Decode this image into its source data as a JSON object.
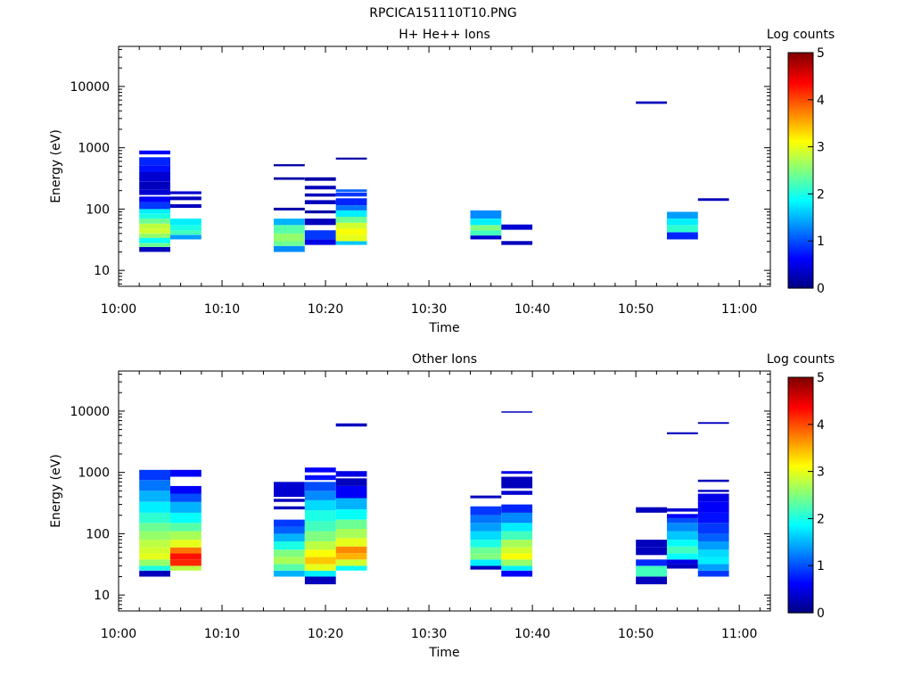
{
  "figure_title": "RPCICA151110T10.PNG",
  "chart_data": [
    {
      "type": "heatmap",
      "title": "H+ He++ Ions",
      "xlabel": "Time",
      "ylabel": "Energy (eV)",
      "x_ticks": [
        "10:00",
        "10:10",
        "10:20",
        "10:30",
        "10:40",
        "10:50",
        "11:00"
      ],
      "x_range": [
        "10:00",
        "11:03"
      ],
      "y_scale": "log",
      "y_ticks": [
        "10",
        "100",
        "1000",
        "10000"
      ],
      "ylim": [
        5.5,
        45000
      ],
      "colorbar": {
        "label": "Log counts",
        "ticks": [
          "0",
          "1",
          "2",
          "3",
          "4",
          "5"
        ],
        "range": [
          0,
          5
        ],
        "colormap": "jet"
      },
      "columns": [
        {
          "t_start": "10:02",
          "t_end": "10:05",
          "cells": [
            [
              20,
              24,
              0.3
            ],
            [
              24,
              28,
              2.4
            ],
            [
              28,
              34,
              1.9
            ],
            [
              34,
              40,
              2.6
            ],
            [
              40,
              48,
              2.9
            ],
            [
              48,
              58,
              2.8
            ],
            [
              58,
              70,
              2.4
            ],
            [
              70,
              85,
              2.0
            ],
            [
              85,
              100,
              1.8
            ],
            [
              100,
              130,
              0.9
            ],
            [
              130,
              160,
              0.6
            ],
            [
              170,
              210,
              0.4
            ],
            [
              210,
              280,
              0.3
            ],
            [
              280,
              400,
              0.4
            ],
            [
              400,
              520,
              0.7
            ],
            [
              520,
              700,
              0.8
            ],
            [
              780,
              900,
              0.6
            ]
          ]
        },
        {
          "t_start": "10:05",
          "t_end": "10:08",
          "cells": [
            [
              32,
              38,
              1.4
            ],
            [
              38,
              45,
              2.2
            ],
            [
              45,
              55,
              2.0
            ],
            [
              55,
              70,
              1.8
            ],
            [
              105,
              120,
              0.3
            ],
            [
              140,
              160,
              0.3
            ],
            [
              175,
              195,
              0.4
            ]
          ]
        },
        {
          "t_start": "10:15",
          "t_end": "10:18",
          "cells": [
            [
              20,
              25,
              1.3
            ],
            [
              25,
              30,
              2.4
            ],
            [
              30,
              40,
              2.6
            ],
            [
              40,
              55,
              2.3
            ],
            [
              55,
              70,
              1.5
            ],
            [
              95,
              105,
              0.2
            ],
            [
              300,
              330,
              0.2
            ],
            [
              500,
              540,
              0.2
            ]
          ]
        },
        {
          "t_start": "10:18",
          "t_end": "10:21",
          "cells": [
            [
              26,
              32,
              0.5
            ],
            [
              32,
              45,
              0.9
            ],
            [
              55,
              70,
              0.3
            ],
            [
              85,
              95,
              0.2
            ],
            [
              120,
              140,
              0.3
            ],
            [
              160,
              180,
              0.3
            ],
            [
              210,
              240,
              0.3
            ],
            [
              290,
              330,
              0.2
            ]
          ]
        },
        {
          "t_start": "10:21",
          "t_end": "10:24",
          "cells": [
            [
              26,
              30,
              1.6
            ],
            [
              30,
              38,
              3.0
            ],
            [
              38,
              48,
              3.1
            ],
            [
              48,
              60,
              2.9
            ],
            [
              60,
              75,
              2.4
            ],
            [
              75,
              95,
              1.8
            ],
            [
              95,
              115,
              1.2
            ],
            [
              115,
              150,
              0.8
            ],
            [
              160,
              185,
              0.9
            ],
            [
              190,
              210,
              1.1
            ],
            [
              640,
              690,
              0.2
            ]
          ]
        },
        {
          "t_start": "10:34",
          "t_end": "10:37",
          "cells": [
            [
              32,
              37,
              0.4
            ],
            [
              37,
              45,
              2.2
            ],
            [
              45,
              55,
              2.5
            ],
            [
              55,
              70,
              1.8
            ],
            [
              70,
              95,
              1.3
            ]
          ]
        },
        {
          "t_start": "10:37",
          "t_end": "10:40",
          "cells": [
            [
              26,
              30,
              0.3
            ],
            [
              46,
              56,
              0.4
            ]
          ]
        },
        {
          "t_start": "10:50",
          "t_end": "10:53",
          "cells": [
            [
              5200,
              5700,
              0.3
            ]
          ]
        },
        {
          "t_start": "10:53",
          "t_end": "10:56",
          "cells": [
            [
              32,
              42,
              0.8
            ],
            [
              42,
              55,
              2.1
            ],
            [
              55,
              70,
              1.8
            ],
            [
              70,
              90,
              1.4
            ]
          ]
        },
        {
          "t_start": "10:56",
          "t_end": "10:59",
          "cells": [
            [
              136,
              150,
              0.3
            ]
          ]
        }
      ]
    },
    {
      "type": "heatmap",
      "title": "Other Ions",
      "xlabel": "Time",
      "ylabel": "Energy (eV)",
      "x_ticks": [
        "10:00",
        "10:10",
        "10:20",
        "10:30",
        "10:40",
        "10:50",
        "11:00"
      ],
      "x_range": [
        "10:00",
        "11:03"
      ],
      "y_scale": "log",
      "y_ticks": [
        "10",
        "100",
        "1000",
        "10000"
      ],
      "ylim": [
        5.5,
        45000
      ],
      "colorbar": {
        "label": "Log counts",
        "ticks": [
          "0",
          "1",
          "2",
          "3",
          "4",
          "5"
        ],
        "range": [
          0,
          5
        ],
        "colormap": "jet"
      },
      "columns": [
        {
          "t_start": "10:02",
          "t_end": "10:05",
          "cells": [
            [
              20,
              25,
              0.3
            ],
            [
              25,
              30,
              2.0
            ],
            [
              30,
              38,
              2.6
            ],
            [
              38,
              48,
              3.0
            ],
            [
              48,
              60,
              2.9
            ],
            [
              60,
              80,
              2.8
            ],
            [
              80,
              110,
              2.6
            ],
            [
              110,
              150,
              2.4
            ],
            [
              150,
              220,
              2.1
            ],
            [
              220,
              330,
              1.8
            ],
            [
              330,
              500,
              1.5
            ],
            [
              500,
              750,
              1.2
            ],
            [
              750,
              1100,
              0.9
            ]
          ]
        },
        {
          "t_start": "10:05",
          "t_end": "10:08",
          "cells": [
            [
              25,
              30,
              2.8
            ],
            [
              30,
              38,
              4.2
            ],
            [
              38,
              48,
              4.3
            ],
            [
              48,
              60,
              3.8
            ],
            [
              60,
              80,
              3.0
            ],
            [
              80,
              110,
              2.7
            ],
            [
              110,
              150,
              2.3
            ],
            [
              150,
              220,
              1.9
            ],
            [
              220,
              330,
              1.5
            ],
            [
              330,
              450,
              1.0
            ],
            [
              450,
              600,
              0.6
            ],
            [
              850,
              1100,
              0.6
            ]
          ]
        },
        {
          "t_start": "10:15",
          "t_end": "10:18",
          "cells": [
            [
              20,
              25,
              1.5
            ],
            [
              25,
              32,
              2.3
            ],
            [
              32,
              42,
              2.7
            ],
            [
              42,
              55,
              2.5
            ],
            [
              55,
              75,
              2.0
            ],
            [
              75,
              100,
              1.5
            ],
            [
              100,
              130,
              1.1
            ],
            [
              130,
              170,
              0.9
            ],
            [
              250,
              280,
              0.3
            ],
            [
              330,
              370,
              0.3
            ],
            [
              400,
              700,
              0.4
            ]
          ]
        },
        {
          "t_start": "10:18",
          "t_end": "10:21",
          "cells": [
            [
              15,
              20,
              0.3
            ],
            [
              20,
              25,
              1.8
            ],
            [
              25,
              32,
              3.0
            ],
            [
              32,
              42,
              3.4
            ],
            [
              42,
              55,
              3.1
            ],
            [
              55,
              75,
              2.8
            ],
            [
              75,
              110,
              2.5
            ],
            [
              110,
              160,
              2.2
            ],
            [
              160,
              240,
              2.0
            ],
            [
              240,
              350,
              1.7
            ],
            [
              350,
              500,
              1.3
            ],
            [
              500,
              700,
              1.0
            ],
            [
              750,
              900,
              0.7
            ],
            [
              1000,
              1200,
              0.6
            ]
          ]
        },
        {
          "t_start": "10:21",
          "t_end": "10:24",
          "cells": [
            [
              25,
              30,
              1.9
            ],
            [
              30,
              38,
              2.9
            ],
            [
              38,
              48,
              3.5
            ],
            [
              48,
              62,
              3.7
            ],
            [
              62,
              85,
              3.0
            ],
            [
              85,
              120,
              2.7
            ],
            [
              120,
              170,
              2.4
            ],
            [
              170,
              250,
              1.9
            ],
            [
              250,
              380,
              1.5
            ],
            [
              380,
              600,
              0.6
            ],
            [
              600,
              800,
              0.3
            ],
            [
              850,
              1050,
              0.5
            ],
            [
              5600,
              6300,
              0.3
            ]
          ]
        },
        {
          "t_start": "10:34",
          "t_end": "10:37",
          "cells": [
            [
              26,
              30,
              0.3
            ],
            [
              30,
              38,
              1.8
            ],
            [
              38,
              48,
              2.5
            ],
            [
              48,
              60,
              2.4
            ],
            [
              60,
              80,
              2.0
            ],
            [
              80,
              110,
              1.7
            ],
            [
              110,
              150,
              1.4
            ],
            [
              150,
              200,
              1.2
            ],
            [
              200,
              280,
              0.9
            ],
            [
              380,
              420,
              0.3
            ]
          ]
        },
        {
          "t_start": "10:37",
          "t_end": "10:40",
          "cells": [
            [
              20,
              25,
              0.6
            ],
            [
              25,
              30,
              1.8
            ],
            [
              30,
              38,
              2.6
            ],
            [
              38,
              48,
              3.1
            ],
            [
              48,
              60,
              2.9
            ],
            [
              60,
              80,
              2.7
            ],
            [
              80,
              110,
              2.2
            ],
            [
              110,
              150,
              1.8
            ],
            [
              150,
              220,
              1.3
            ],
            [
              220,
              300,
              0.8
            ],
            [
              430,
              500,
              0.4
            ],
            [
              550,
              850,
              0.3
            ],
            [
              950,
              1050,
              0.5
            ],
            [
              9400,
              9900,
              0.3
            ]
          ]
        },
        {
          "t_start": "10:50",
          "t_end": "10:53",
          "cells": [
            [
              15,
              20,
              0.3
            ],
            [
              20,
              30,
              2.2
            ],
            [
              30,
              38,
              0.8
            ],
            [
              45,
              60,
              0.3
            ],
            [
              60,
              80,
              0.3
            ],
            [
              220,
              270,
              0.3
            ]
          ]
        },
        {
          "t_start": "10:53",
          "t_end": "10:56",
          "cells": [
            [
              27,
              32,
              0.3
            ],
            [
              32,
              38,
              0.5
            ],
            [
              38,
              48,
              1.9
            ],
            [
              48,
              62,
              2.2
            ],
            [
              62,
              80,
              1.9
            ],
            [
              80,
              110,
              1.6
            ],
            [
              110,
              150,
              1.3
            ],
            [
              150,
              180,
              1.0
            ],
            [
              180,
              210,
              0.6
            ],
            [
              230,
              260,
              0.4
            ],
            [
              4200,
              4500,
              0.3
            ]
          ]
        },
        {
          "t_start": "10:56",
          "t_end": "10:59",
          "cells": [
            [
              20,
              25,
              0.9
            ],
            [
              25,
              32,
              1.4
            ],
            [
              32,
              42,
              1.8
            ],
            [
              42,
              55,
              1.7
            ],
            [
              55,
              75,
              1.4
            ],
            [
              75,
              100,
              1.1
            ],
            [
              100,
              150,
              0.9
            ],
            [
              150,
              220,
              0.7
            ],
            [
              220,
              330,
              0.6
            ],
            [
              330,
              450,
              0.5
            ],
            [
              480,
              520,
              0.3
            ],
            [
              700,
              760,
              0.3
            ],
            [
              6200,
              6600,
              0.3
            ]
          ]
        }
      ]
    }
  ]
}
